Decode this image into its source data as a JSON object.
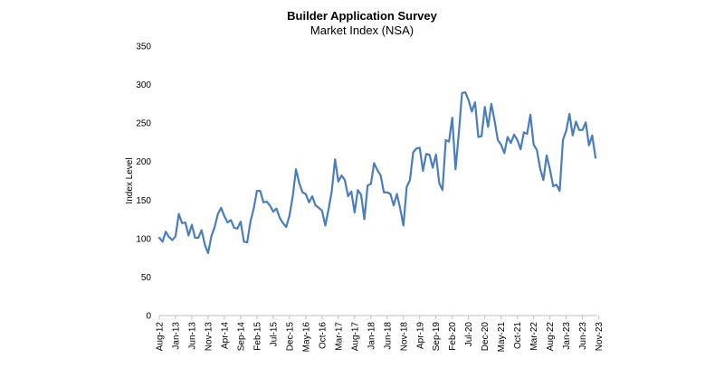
{
  "chart_data": {
    "type": "line",
    "title": "Builder Application Survey",
    "subtitle": "Market Index (NSA)",
    "xlabel": "",
    "ylabel": "Index Level",
    "ylim": [
      0,
      350
    ],
    "yticks": [
      "0",
      "50",
      "100",
      "150",
      "200",
      "250",
      "300",
      "350"
    ],
    "grid": false,
    "line_color": "#4a7ebb",
    "x_start": "Aug-12",
    "x_end": "Nov-23",
    "x_tick_labels": [
      "Aug-12",
      "Jan-13",
      "Jun-13",
      "Nov-13",
      "Apr-14",
      "Sep-14",
      "Feb-15",
      "Jul-15",
      "Dec-15",
      "May-16",
      "Oct-16",
      "Mar-17",
      "Aug-17",
      "Jan-18",
      "Jun-18",
      "Nov-18",
      "Apr-19",
      "Sep-19",
      "Feb-20",
      "Jul-20",
      "Dec-20",
      "May-21",
      "Oct-21",
      "Mar-22",
      "Aug-22",
      "Jan-23",
      "Jun-23",
      "Nov-23"
    ],
    "series": [
      {
        "name": "Market Index (NSA)",
        "values": [
          101,
          96,
          109,
          102,
          98,
          103,
          132,
          120,
          121,
          104,
          118,
          101,
          101,
          111,
          92,
          81,
          103,
          115,
          132,
          140,
          129,
          121,
          124,
          114,
          113,
          122,
          96,
          95,
          122,
          139,
          162,
          162,
          147,
          148,
          143,
          135,
          139,
          127,
          120,
          115,
          130,
          155,
          190,
          172,
          160,
          158,
          147,
          155,
          143,
          140,
          136,
          117,
          138,
          162,
          203,
          174,
          182,
          176,
          155,
          161,
          134,
          163,
          157,
          125,
          169,
          171,
          198,
          189,
          182,
          160,
          160,
          158,
          143,
          158,
          139,
          117,
          167,
          176,
          212,
          217,
          218,
          188,
          210,
          209,
          192,
          209,
          172,
          163,
          228,
          226,
          257,
          190,
          236,
          289,
          290,
          280,
          265,
          277,
          232,
          233,
          271,
          245,
          275,
          253,
          228,
          222,
          211,
          232,
          224,
          235,
          228,
          216,
          238,
          236,
          261,
          222,
          215,
          191,
          176,
          208,
          190,
          168,
          170,
          162,
          228,
          240,
          262,
          234,
          252,
          241,
          241,
          251,
          221,
          234,
          205
        ]
      }
    ]
  }
}
